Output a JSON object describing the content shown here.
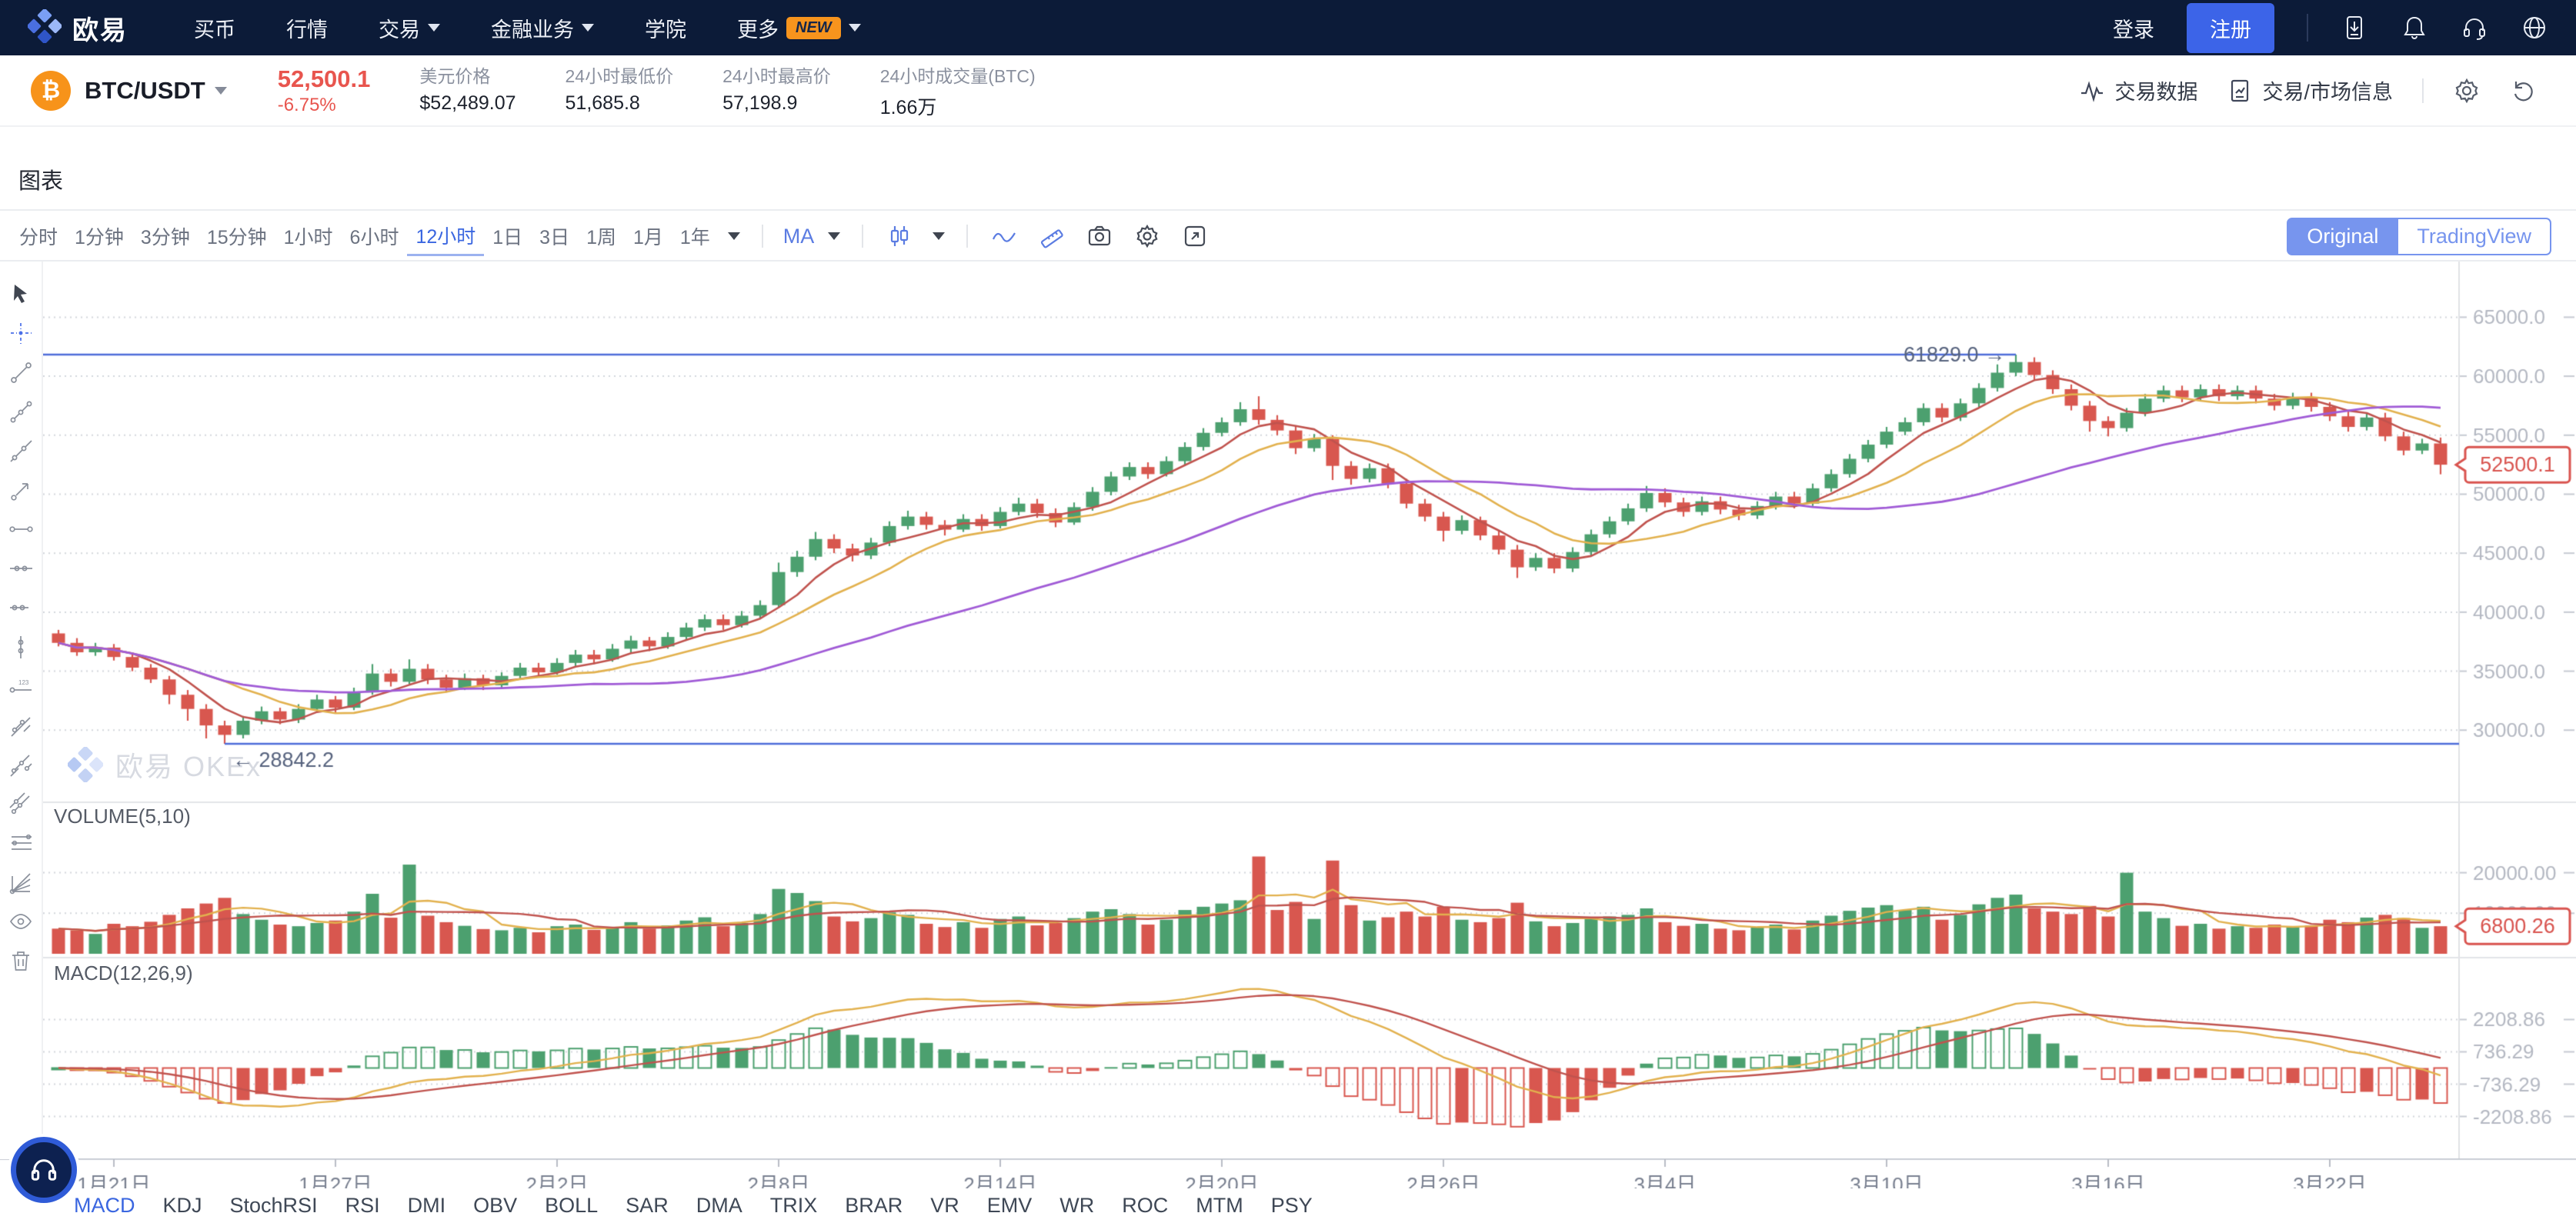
{
  "nav": {
    "logo_text": "欧易",
    "items": [
      {
        "label": "买币",
        "caret": false,
        "badge": ""
      },
      {
        "label": "行情",
        "caret": false,
        "badge": ""
      },
      {
        "label": "交易",
        "caret": true,
        "badge": ""
      },
      {
        "label": "金融业务",
        "caret": true,
        "badge": ""
      },
      {
        "label": "学院",
        "caret": false,
        "badge": ""
      },
      {
        "label": "更多",
        "caret": true,
        "badge": "NEW"
      }
    ],
    "login": "登录",
    "register": "注册",
    "icons": [
      "download-app-icon",
      "notifications-bell-icon",
      "support-headset-icon",
      "language-globe-icon"
    ]
  },
  "ticker": {
    "pair": "BTC/USDT",
    "price": "52,500.1",
    "change": "-6.75%",
    "stats": [
      {
        "label": "美元价格",
        "value": "$52,489.07"
      },
      {
        "label": "24小时最低价",
        "value": "51,685.8"
      },
      {
        "label": "24小时最高价",
        "value": "57,198.9"
      },
      {
        "label": "24小时成交量(BTC)",
        "value": "1.66万"
      }
    ],
    "actions": [
      {
        "label": "交易数据",
        "icon": "pulse-icon"
      },
      {
        "label": "交易/市场信息",
        "icon": "report-icon"
      }
    ]
  },
  "section_title": "图表",
  "toolbar": {
    "timeframes": [
      "分时",
      "1分钟",
      "3分钟",
      "15分钟",
      "1小时",
      "6小时",
      "12小时",
      "1日",
      "3日",
      "1周",
      "1月",
      "1年"
    ],
    "active_timeframe": "12小时",
    "ma_label": "MA",
    "icons": [
      "candle-style-icon",
      "line-chart-icon",
      "measure-ruler-icon",
      "screenshot-camera-icon",
      "chart-settings-gear-icon",
      "fullscreen-expand-icon"
    ],
    "toggle": [
      "Original",
      "TradingView"
    ],
    "active_toggle": "Original"
  },
  "left_tools": [
    "cursor",
    "crosshair",
    "trend-line",
    "three-point-line",
    "extended-line",
    "arrow-line",
    "horizontal-line",
    "horizontal-ray",
    "horizontal-segment",
    "vertical-line",
    "price-label-line",
    "parallel-lines",
    "parallel-channel",
    "linear-channel",
    "fib-retracement",
    "gann-fan",
    "eye",
    "trash"
  ],
  "watermark": "欧易 OKEx",
  "panes": {
    "volume_label": "VOLUME(5,10)",
    "macd_label": "MACD(12,26,9)"
  },
  "indicators": {
    "items": [
      "MACD",
      "KDJ",
      "StochRSI",
      "RSI",
      "DMI",
      "OBV",
      "BOLL",
      "SAR",
      "DMA",
      "TRIX",
      "BRAR",
      "VR",
      "EMV",
      "WR",
      "ROC",
      "MTM",
      "PSY"
    ],
    "active": "MACD"
  },
  "chart_data": {
    "type": "candlestick",
    "pair": "BTC/USDT",
    "interval": "12小时",
    "price_axis_ticks": [
      {
        "value": 65000,
        "label": "65000.0"
      },
      {
        "value": 60000,
        "label": "60000.0"
      },
      {
        "value": 55000,
        "label": "55000.0"
      },
      {
        "value": 50000,
        "label": "50000.0"
      },
      {
        "value": 45000,
        "label": "45000.0"
      },
      {
        "value": 40000,
        "label": "40000.0"
      },
      {
        "value": 35000,
        "label": "35000.0"
      },
      {
        "value": 30000,
        "label": "30000.0"
      }
    ],
    "volume_axis_ticks": [
      {
        "value": 20000,
        "label": "20000.00"
      },
      {
        "value": 10000,
        "label": "10000.00"
      }
    ],
    "macd_axis_ticks": [
      {
        "value": 2208.86,
        "label": "2208.86"
      },
      {
        "value": 736.29,
        "label": "736.29"
      },
      {
        "value": -736.29,
        "label": "-736.29"
      },
      {
        "value": -2208.86,
        "label": "-2208.86"
      }
    ],
    "markers": {
      "high": {
        "value": 61829.0,
        "label": "61829.0 →",
        "index": 106
      },
      "low": {
        "value": 28842.2,
        "label": "← 28842.2",
        "index": 9
      }
    },
    "current_price_tag": "52500.1",
    "current_volume_tag": "6800.26",
    "date_ticks": [
      {
        "label": "1月21日",
        "index": 3
      },
      {
        "label": "1月27日",
        "index": 15
      },
      {
        "label": "2月2日",
        "index": 27
      },
      {
        "label": "2月8日",
        "index": 39
      },
      {
        "label": "2月14日",
        "index": 51
      },
      {
        "label": "2月20日",
        "index": 63
      },
      {
        "label": "2月26日",
        "index": 75
      },
      {
        "label": "3月4日",
        "index": 87
      },
      {
        "label": "3月10日",
        "index": 99
      },
      {
        "label": "3月16日",
        "index": 111
      },
      {
        "label": "3月22日",
        "index": 123
      }
    ],
    "ma_periods": {
      "price": [
        5,
        10,
        30
      ],
      "volume": [
        5,
        10
      ],
      "macd": [
        12,
        26,
        9
      ]
    },
    "colors": {
      "up": "#4ca06f",
      "down": "#d8574f",
      "ma_fast": "#c0534e",
      "ma_mid": "#e2b14e",
      "ma_slow": "#a05bd6",
      "marker_line": "#4d6cd9",
      "marker_text": "#56627d",
      "tag": "#d9544f",
      "grid": "#d3d6dc",
      "axis_text": "#b4b8c2",
      "date_text": "#798090",
      "accent": "#3a66e0"
    },
    "candles": [
      [
        38200,
        38500,
        37100,
        37400,
        6200
      ],
      [
        37400,
        37800,
        36300,
        36600,
        5800
      ],
      [
        36600,
        37400,
        36300,
        37000,
        4900
      ],
      [
        37000,
        37300,
        35900,
        36200,
        7400
      ],
      [
        36200,
        36600,
        35000,
        35300,
        6800
      ],
      [
        35300,
        35600,
        34000,
        34300,
        7900
      ],
      [
        34300,
        34600,
        32200,
        33000,
        9600
      ],
      [
        33000,
        33400,
        30800,
        31800,
        11200
      ],
      [
        31800,
        32200,
        29300,
        30400,
        12400
      ],
      [
        30400,
        30800,
        28842,
        29600,
        13800
      ],
      [
        29600,
        31200,
        29300,
        30800,
        9800
      ],
      [
        30800,
        32000,
        30500,
        31600,
        8400
      ],
      [
        31600,
        31900,
        30500,
        30900,
        7200
      ],
      [
        30900,
        32200,
        30600,
        31800,
        6800
      ],
      [
        31800,
        33000,
        31500,
        32600,
        7600
      ],
      [
        32600,
        32900,
        31400,
        31900,
        8200
      ],
      [
        31900,
        33600,
        31700,
        33200,
        10400
      ],
      [
        33200,
        35600,
        33000,
        34800,
        14800
      ],
      [
        34800,
        35200,
        33700,
        34100,
        8900
      ],
      [
        34100,
        36000,
        33900,
        35200,
        22000
      ],
      [
        35200,
        35600,
        33900,
        34300,
        9400
      ],
      [
        34300,
        34700,
        33200,
        33600,
        7800
      ],
      [
        33600,
        34800,
        33400,
        34400,
        6900
      ],
      [
        34400,
        34700,
        33400,
        33800,
        6100
      ],
      [
        33800,
        34900,
        33500,
        34600,
        5800
      ],
      [
        34600,
        35700,
        34300,
        35300,
        6400
      ],
      [
        35300,
        35700,
        34500,
        34900,
        5300
      ],
      [
        34900,
        36100,
        34700,
        35700,
        6800
      ],
      [
        35700,
        36800,
        35400,
        36400,
        7200
      ],
      [
        36400,
        36800,
        35600,
        36000,
        5900
      ],
      [
        36000,
        37300,
        35800,
        36900,
        6600
      ],
      [
        36900,
        38000,
        36600,
        37600,
        7800
      ],
      [
        37600,
        37900,
        36700,
        37100,
        6200
      ],
      [
        37100,
        38300,
        36900,
        37900,
        7000
      ],
      [
        37900,
        39100,
        37600,
        38700,
        8200
      ],
      [
        38700,
        39800,
        38400,
        39400,
        9000
      ],
      [
        39400,
        39800,
        38500,
        38900,
        6800
      ],
      [
        38900,
        40100,
        38700,
        39700,
        7600
      ],
      [
        39700,
        41000,
        39400,
        40600,
        9800
      ],
      [
        40600,
        44200,
        40400,
        43400,
        16000
      ],
      [
        43400,
        45200,
        43000,
        44700,
        15000
      ],
      [
        44700,
        46800,
        44400,
        46200,
        13000
      ],
      [
        46200,
        46600,
        45000,
        45400,
        9200
      ],
      [
        45400,
        45800,
        44300,
        44800,
        8000
      ],
      [
        44800,
        46300,
        44500,
        45900,
        8800
      ],
      [
        45900,
        47700,
        45600,
        47300,
        10200
      ],
      [
        47300,
        48600,
        47000,
        48100,
        9600
      ],
      [
        48100,
        48500,
        47000,
        47400,
        7400
      ],
      [
        47400,
        47800,
        46500,
        47000,
        6600
      ],
      [
        47000,
        48300,
        46800,
        47900,
        7800
      ],
      [
        47900,
        48300,
        46900,
        47300,
        6400
      ],
      [
        47300,
        48900,
        47100,
        48500,
        8600
      ],
      [
        48500,
        49700,
        48200,
        49200,
        9200
      ],
      [
        49200,
        49600,
        48000,
        48400,
        7000
      ],
      [
        48400,
        48800,
        47200,
        47600,
        7600
      ],
      [
        47600,
        49300,
        47400,
        48900,
        8800
      ],
      [
        48900,
        50600,
        48600,
        50200,
        10400
      ],
      [
        50200,
        51900,
        49900,
        51500,
        11000
      ],
      [
        51500,
        52700,
        51200,
        52300,
        9800
      ],
      [
        52300,
        52700,
        51300,
        51700,
        7200
      ],
      [
        51700,
        53200,
        51500,
        52800,
        8400
      ],
      [
        52800,
        54400,
        52500,
        54000,
        10800
      ],
      [
        54000,
        55600,
        53700,
        55200,
        11600
      ],
      [
        55200,
        56500,
        54900,
        56100,
        12400
      ],
      [
        56100,
        57800,
        55800,
        57200,
        13200
      ],
      [
        57200,
        58300,
        55900,
        56300,
        24000
      ],
      [
        56300,
        56700,
        55000,
        55400,
        10800
      ],
      [
        55400,
        55800,
        53400,
        53900,
        12800
      ],
      [
        53900,
        55100,
        53600,
        54700,
        8600
      ],
      [
        54700,
        55000,
        51200,
        52400,
        23000
      ],
      [
        52400,
        52800,
        50800,
        51300,
        12000
      ],
      [
        51300,
        52600,
        51000,
        52200,
        8200
      ],
      [
        52200,
        52600,
        50500,
        50900,
        9000
      ],
      [
        50900,
        51300,
        48800,
        49200,
        10400
      ],
      [
        49200,
        49600,
        47700,
        48100,
        9200
      ],
      [
        48100,
        48500,
        46000,
        46900,
        11600
      ],
      [
        46900,
        48200,
        46600,
        47800,
        8400
      ],
      [
        47800,
        48100,
        46100,
        46500,
        7800
      ],
      [
        46500,
        46900,
        44900,
        45300,
        8800
      ],
      [
        45300,
        45700,
        42900,
        43800,
        12600
      ],
      [
        43800,
        45000,
        43500,
        44600,
        8000
      ],
      [
        44600,
        45000,
        43300,
        43700,
        6800
      ],
      [
        43700,
        45500,
        43400,
        45100,
        7600
      ],
      [
        45100,
        47000,
        44800,
        46600,
        8800
      ],
      [
        46600,
        48100,
        46300,
        47700,
        9200
      ],
      [
        47700,
        49200,
        47400,
        48800,
        9600
      ],
      [
        48800,
        50700,
        48500,
        50100,
        11200
      ],
      [
        50100,
        50500,
        48900,
        49300,
        7800
      ],
      [
        49300,
        49700,
        48100,
        48500,
        6900
      ],
      [
        48500,
        49800,
        48200,
        49400,
        7400
      ],
      [
        49400,
        49800,
        48300,
        48700,
        6200
      ],
      [
        48700,
        49100,
        47800,
        48200,
        5800
      ],
      [
        48200,
        49400,
        47900,
        49000,
        6600
      ],
      [
        49000,
        50200,
        48700,
        49800,
        7200
      ],
      [
        49800,
        50200,
        48800,
        49200,
        6000
      ],
      [
        49200,
        50900,
        49000,
        50500,
        8200
      ],
      [
        50500,
        52100,
        50200,
        51700,
        9400
      ],
      [
        51700,
        53400,
        51400,
        53000,
        10600
      ],
      [
        53000,
        54600,
        52700,
        54200,
        11400
      ],
      [
        54200,
        55700,
        53900,
        55300,
        12000
      ],
      [
        55300,
        56500,
        55000,
        56100,
        10800
      ],
      [
        56100,
        57700,
        55800,
        57300,
        11600
      ],
      [
        57300,
        57700,
        56100,
        56500,
        8400
      ],
      [
        56500,
        58100,
        56200,
        57700,
        9600
      ],
      [
        57700,
        59400,
        57400,
        59000,
        12200
      ],
      [
        59000,
        61000,
        58700,
        60300,
        13800
      ],
      [
        60300,
        61829,
        60000,
        61200,
        14600
      ],
      [
        61200,
        61600,
        59700,
        60100,
        11200
      ],
      [
        60100,
        60500,
        58500,
        58900,
        10400
      ],
      [
        58900,
        59300,
        57100,
        57500,
        9800
      ],
      [
        57500,
        57900,
        55300,
        56200,
        11800
      ],
      [
        56200,
        56600,
        54900,
        55600,
        9200
      ],
      [
        55600,
        57300,
        55300,
        56900,
        20000
      ],
      [
        56900,
        58500,
        56600,
        58100,
        10400
      ],
      [
        58100,
        59200,
        57800,
        58800,
        8800
      ],
      [
        58800,
        59200,
        57800,
        58200,
        6900
      ],
      [
        58200,
        59300,
        57900,
        58900,
        7400
      ],
      [
        58900,
        59300,
        57900,
        58300,
        6200
      ],
      [
        58300,
        59200,
        58000,
        58800,
        6800
      ],
      [
        58800,
        59200,
        57700,
        58100,
        6400
      ],
      [
        58100,
        58500,
        57100,
        57500,
        7200
      ],
      [
        57500,
        58600,
        57200,
        58200,
        6600
      ],
      [
        58200,
        58600,
        57000,
        57400,
        7000
      ],
      [
        57400,
        57800,
        56200,
        56600,
        8400
      ],
      [
        56600,
        57000,
        55300,
        55700,
        7800
      ],
      [
        55700,
        56900,
        55400,
        56500,
        8938
      ],
      [
        56500,
        56900,
        54500,
        54900,
        9600
      ],
      [
        54900,
        55300,
        53300,
        53700,
        8800
      ],
      [
        53700,
        54700,
        53400,
        54300,
        6400
      ],
      [
        54300,
        54800,
        51686,
        52500,
        6800
      ]
    ]
  }
}
